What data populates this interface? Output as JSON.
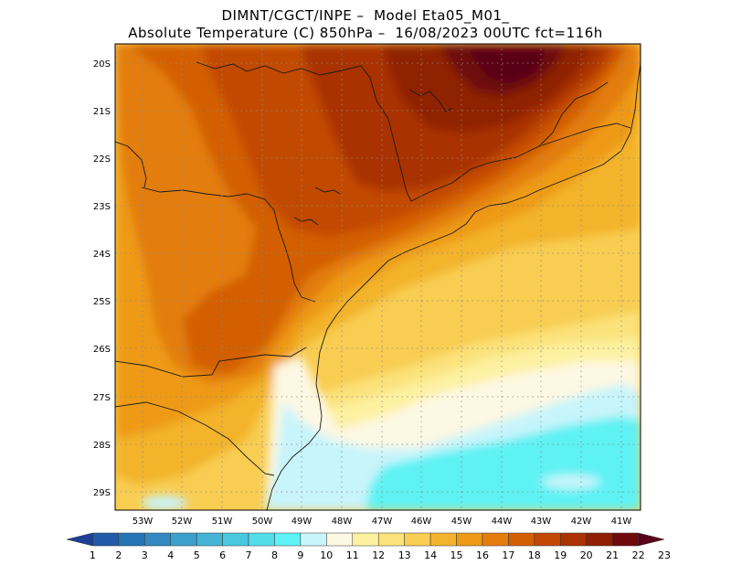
{
  "header": {
    "line1": "DIMNT/CGCT/INPE –  Model Eta05_M01_",
    "line2": "Absolute Temperature (C) 850hPa –  16/08/2023 00UTC fct=116h"
  },
  "map": {
    "lat_labels": [
      "20S",
      "21S",
      "22S",
      "23S",
      "24S",
      "25S",
      "26S",
      "27S",
      "28S",
      "29S"
    ],
    "lon_labels": [
      "53W",
      "52W",
      "51W",
      "50W",
      "49W",
      "48W",
      "47W",
      "46W",
      "45W",
      "44W",
      "43W",
      "42W",
      "41W"
    ],
    "lat_range": [
      -29.4,
      -19.8
    ],
    "lon_range": [
      -53.8,
      -40.6
    ]
  },
  "colorbar": {
    "labels": [
      "1",
      "2",
      "3",
      "4",
      "5",
      "6",
      "7",
      "8",
      "9",
      "10",
      "11",
      "12",
      "13",
      "14",
      "15",
      "16",
      "17",
      "18",
      "19",
      "20",
      "21",
      "22",
      "23"
    ],
    "colors": [
      "#1d3f96",
      "#205aa8",
      "#2674b4",
      "#3388bf",
      "#3d9fcb",
      "#44b3d4",
      "#4ac8df",
      "#52dde9",
      "#5ff2f4",
      "#c8f4fb",
      "#fdf8e3",
      "#fdf1a1",
      "#fbe27a",
      "#f8cd52",
      "#f3b32c",
      "#ee9a16",
      "#e37d0e",
      "#d35f05",
      "#c24804",
      "#a93303",
      "#8f2005",
      "#6e0a0a",
      "#5a0018"
    ]
  }
}
